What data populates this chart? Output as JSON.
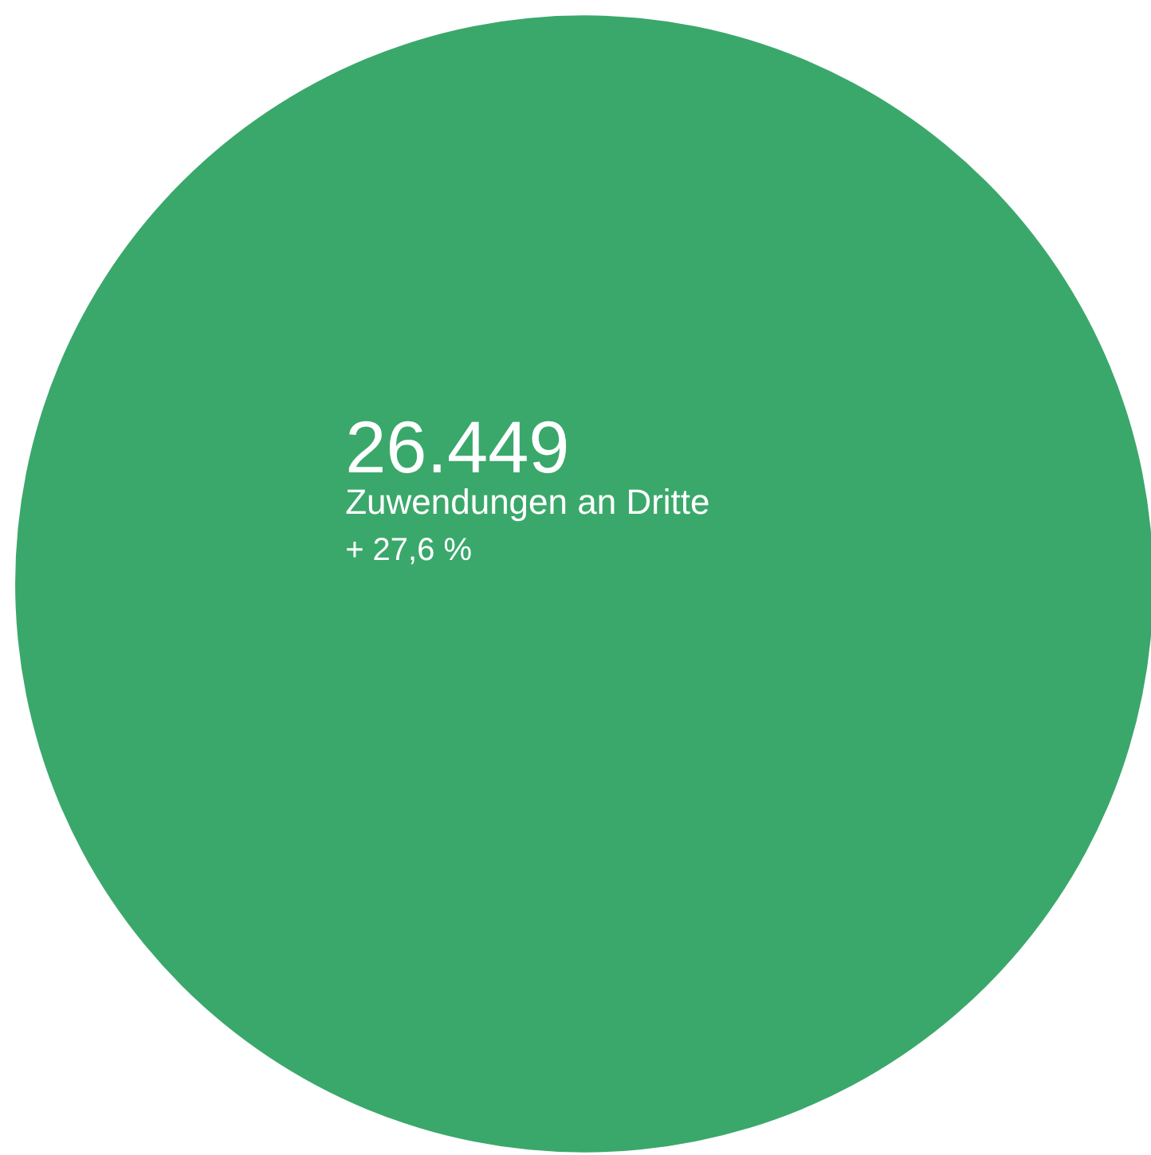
{
  "chart_data": {
    "type": "other",
    "categories": [
      "Zuwendungen an Dritte"
    ],
    "values": [
      26449
    ],
    "value_labels": [
      "26.449"
    ],
    "colors": [
      "#3aa86b"
    ],
    "annotations": [
      "+ 27,6 %"
    ]
  }
}
